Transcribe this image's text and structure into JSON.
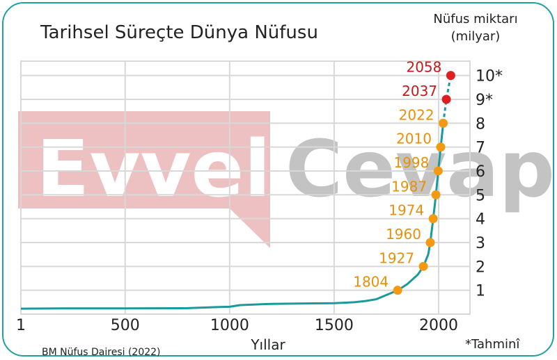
{
  "chart_data": {
    "type": "line",
    "title": "Tarihsel Süreçte Dünya Nüfusu",
    "xlabel": "Yıllar",
    "ylabel": "Nüfus miktarı",
    "ylabel_unit": "(milyar)",
    "source": "BM Nüfus Dairesi (2022)",
    "footnote": "*Tahminî",
    "watermark": {
      "word1": "Evvel",
      "word2": "Cevap"
    },
    "xlim": [
      1,
      2150
    ],
    "ylim": [
      0,
      10.6
    ],
    "x_ticks": [
      {
        "value": 1,
        "label": "1"
      },
      {
        "value": 500,
        "label": "500"
      },
      {
        "value": 1000,
        "label": "1000"
      },
      {
        "value": 1500,
        "label": "1500"
      },
      {
        "value": 2000,
        "label": "2000"
      }
    ],
    "y_ticks": [
      {
        "value": 1,
        "label": "1"
      },
      {
        "value": 2,
        "label": "2"
      },
      {
        "value": 3,
        "label": "3"
      },
      {
        "value": 4,
        "label": "4"
      },
      {
        "value": 5,
        "label": "5"
      },
      {
        "value": 6,
        "label": "6"
      },
      {
        "value": 7,
        "label": "7"
      },
      {
        "value": 8,
        "label": "8"
      },
      {
        "value": 9,
        "label": "9*"
      },
      {
        "value": 10,
        "label": "10*"
      }
    ],
    "grid": true,
    "curve": [
      [
        1,
        0.23
      ],
      [
        200,
        0.24
      ],
      [
        500,
        0.24
      ],
      [
        800,
        0.25
      ],
      [
        950,
        0.3
      ],
      [
        1000,
        0.31
      ],
      [
        1050,
        0.38
      ],
      [
        1200,
        0.43
      ],
      [
        1300,
        0.44
      ],
      [
        1400,
        0.45
      ],
      [
        1500,
        0.46
      ],
      [
        1600,
        0.5
      ],
      [
        1650,
        0.55
      ],
      [
        1700,
        0.62
      ],
      [
        1750,
        0.8
      ],
      [
        1804,
        1.0
      ],
      [
        1850,
        1.26
      ],
      [
        1900,
        1.65
      ],
      [
        1927,
        2.0
      ],
      [
        1950,
        2.5
      ],
      [
        1960,
        3.0
      ],
      [
        1974,
        4.0
      ],
      [
        1987,
        5.0
      ],
      [
        1998,
        6.0
      ],
      [
        2010,
        7.0
      ],
      [
        2022,
        8.0
      ]
    ],
    "projection": [
      [
        2022,
        8.0
      ],
      [
        2037,
        9.0
      ],
      [
        2058,
        10.0
      ]
    ],
    "milestones": [
      {
        "year": 1804,
        "label": "1804",
        "value": 1,
        "estimated": false
      },
      {
        "year": 1927,
        "label": "1927",
        "value": 2,
        "estimated": false
      },
      {
        "year": 1960,
        "label": "1960",
        "value": 3,
        "estimated": false
      },
      {
        "year": 1974,
        "label": "1974",
        "value": 4,
        "estimated": false
      },
      {
        "year": 1987,
        "label": "1987",
        "value": 5,
        "estimated": false
      },
      {
        "year": 1998,
        "label": "1998",
        "value": 6,
        "estimated": false
      },
      {
        "year": 2010,
        "label": "2010",
        "value": 7,
        "estimated": false
      },
      {
        "year": 2022,
        "label": "2022",
        "value": 8,
        "estimated": false
      },
      {
        "year": 2037,
        "label": "2037",
        "value": 9,
        "estimated": true
      },
      {
        "year": 2058,
        "label": "2058",
        "value": 10,
        "estimated": true
      }
    ],
    "colors": {
      "curve": "#1a9a9a",
      "grid": "#d8d8d8",
      "marker_actual": "#f39a12",
      "marker_estimated": "#e02020",
      "label_actual": "#e8900a",
      "label_estimated": "#c81818",
      "frame": "#20a0a0",
      "watermark_red": "#e9b1b1",
      "watermark_gray": "#b5b5b5"
    }
  }
}
